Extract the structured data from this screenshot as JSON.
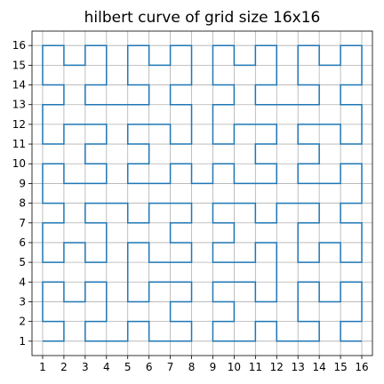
{
  "chart_data": {
    "type": "line",
    "title": "hilbert curve of grid size 16x16",
    "xlabel": "",
    "ylabel": "",
    "xlim": [
      0.5,
      16.5
    ],
    "ylim": [
      0.27,
      16.73
    ],
    "xticks": [
      1,
      2,
      3,
      4,
      5,
      6,
      7,
      8,
      9,
      10,
      11,
      12,
      13,
      14,
      15,
      16
    ],
    "yticks": [
      1,
      2,
      3,
      4,
      5,
      6,
      7,
      8,
      9,
      10,
      11,
      12,
      13,
      14,
      15,
      16
    ],
    "grid": true,
    "grid_size": 16,
    "series": [
      {
        "order": 4,
        "color": "#1f77b4"
      }
    ]
  }
}
